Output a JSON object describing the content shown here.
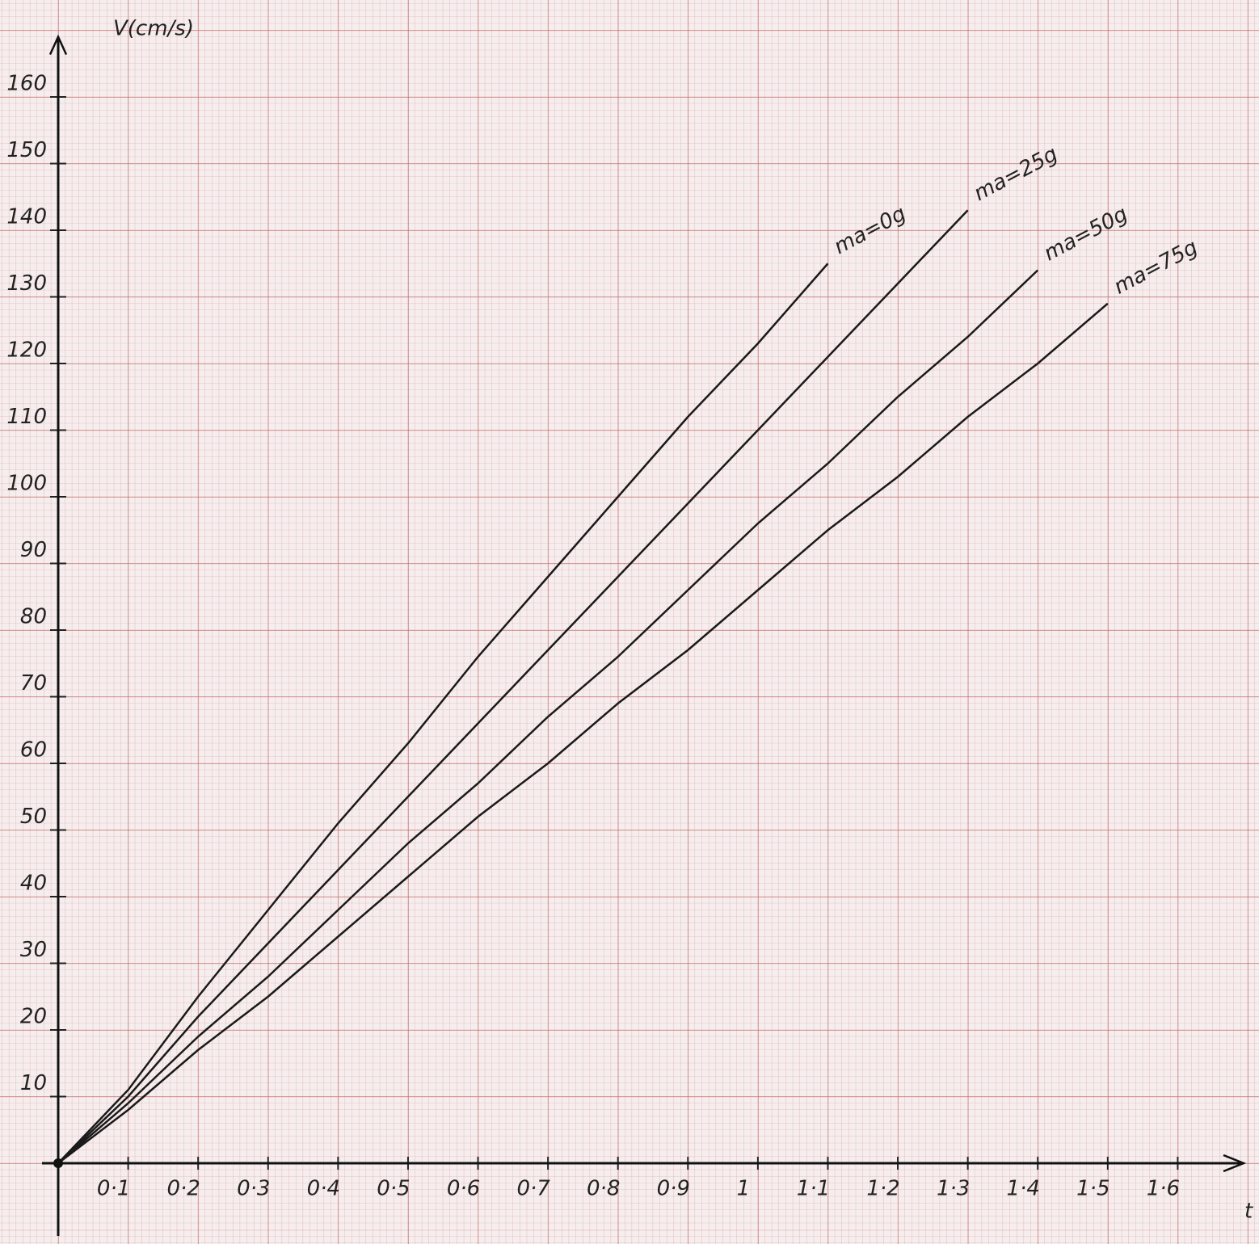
{
  "chart_data": {
    "type": "line",
    "x_label": "t",
    "y_label": "V(cm/s)",
    "x": [
      0,
      0.1,
      0.2,
      0.3,
      0.4,
      0.5,
      0.6,
      0.7,
      0.8,
      0.9,
      1.0,
      1.1,
      1.2,
      1.3,
      1.4,
      1.5,
      1.6
    ],
    "series": [
      {
        "name": "ma=0g",
        "color": "#1a1a1a",
        "values": [
          0,
          11,
          25,
          38,
          51,
          63,
          76,
          88,
          100,
          112,
          123,
          135,
          null,
          null,
          null,
          null,
          null
        ]
      },
      {
        "name": "ma=25g",
        "color": "#1a1a1a",
        "values": [
          0,
          10,
          22,
          33,
          44,
          55,
          66,
          77,
          88,
          99,
          110,
          121,
          132,
          143,
          null,
          null,
          null
        ]
      },
      {
        "name": "ma=50g",
        "color": "#1a1a1a",
        "values": [
          0,
          9,
          19,
          28,
          38,
          48,
          57,
          67,
          76,
          86,
          96,
          105,
          115,
          124,
          134,
          null,
          null
        ]
      },
      {
        "name": "ma=75g",
        "color": "#1a1a1a",
        "values": [
          0,
          8,
          17,
          25,
          34,
          43,
          52,
          60,
          69,
          77,
          86,
          95,
          103,
          112,
          120,
          129,
          null
        ]
      }
    ],
    "xlim": [
      0,
      1.7
    ],
    "ylim": [
      0,
      170
    ],
    "xticks": [
      {
        "value": 0.1,
        "label": "0·1"
      },
      {
        "value": 0.2,
        "label": "0·2"
      },
      {
        "value": 0.3,
        "label": "0·3"
      },
      {
        "value": 0.4,
        "label": "0·4"
      },
      {
        "value": 0.5,
        "label": "0·5"
      },
      {
        "value": 0.6,
        "label": "0·6"
      },
      {
        "value": 0.7,
        "label": "0·7"
      },
      {
        "value": 0.8,
        "label": "0·8"
      },
      {
        "value": 0.9,
        "label": "0·9"
      },
      1,
      {
        "value": 1.1,
        "label": "1·1"
      },
      {
        "value": 1.2,
        "label": "1·2"
      },
      {
        "value": 1.3,
        "label": "1·3"
      },
      {
        "value": 1.4,
        "label": "1·4"
      },
      {
        "value": 1.5,
        "label": "1·5"
      },
      {
        "value": 1.6,
        "label": "1·6"
      }
    ],
    "yticks": [
      10,
      20,
      30,
      40,
      50,
      60,
      70,
      80,
      90,
      100,
      110,
      120,
      130,
      140,
      150,
      160
    ],
    "grid": true
  }
}
